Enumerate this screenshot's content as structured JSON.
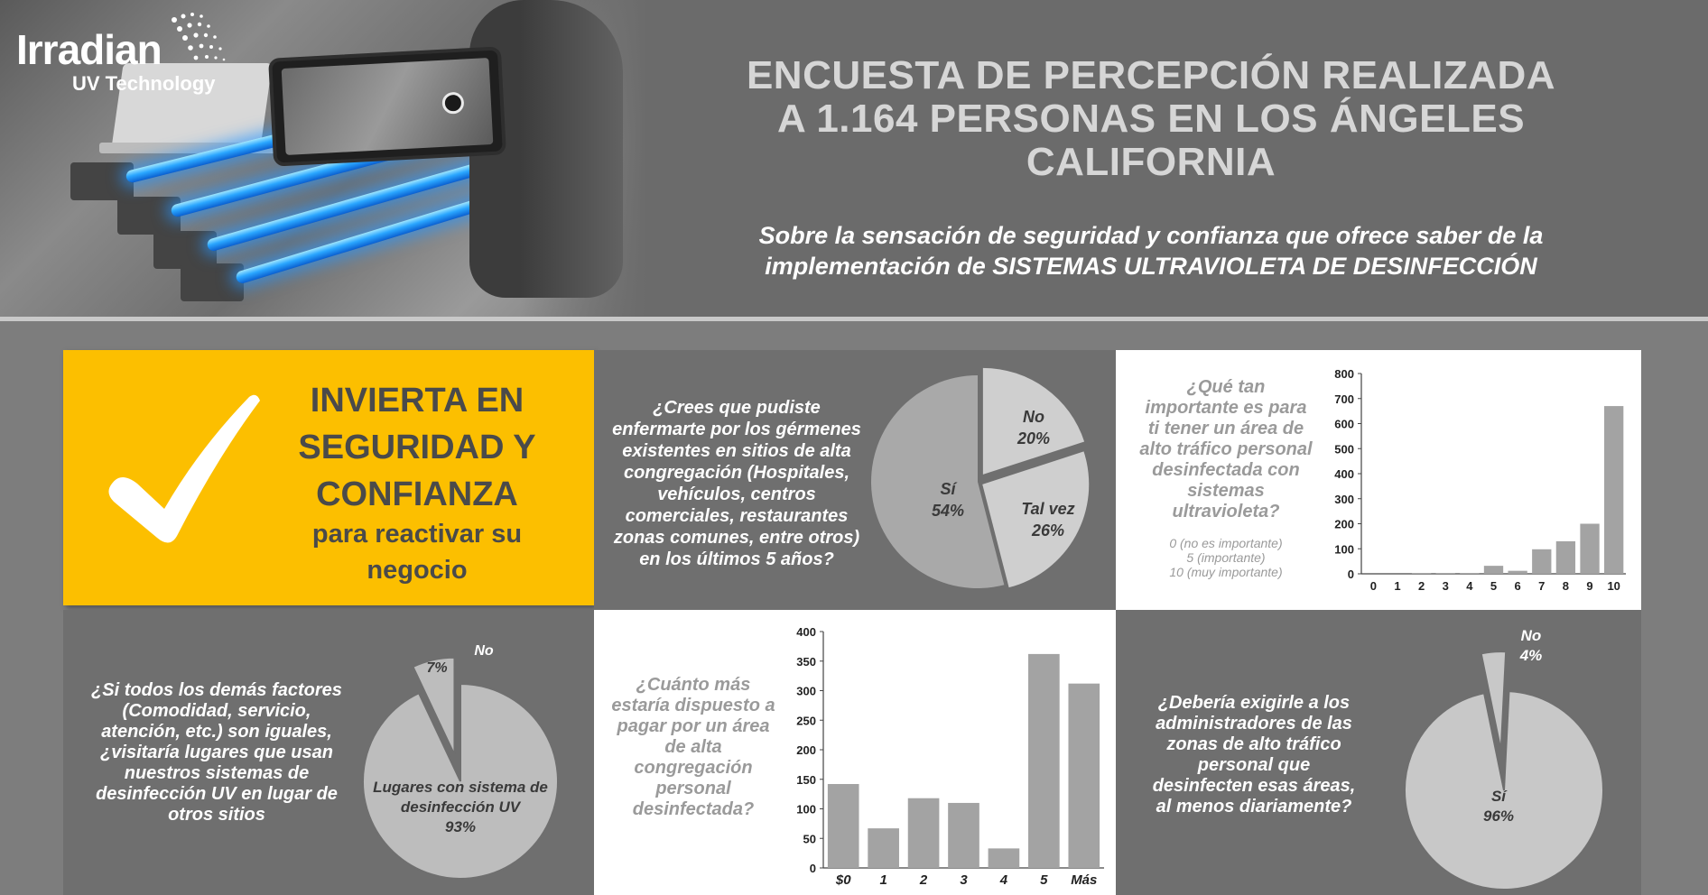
{
  "header": {
    "brand": "Irradian",
    "brand_sub": "UV Technology",
    "title_lines": [
      "ENCUESTA DE PERCEPCIÓN REALIZADA",
      "A 1.164 PERSONAS EN LOS ÁNGELES",
      "CALIFORNIA"
    ],
    "subtitle_line1": "Sobre la sensación de seguridad y confianza que ofrece saber de la",
    "subtitle_line2_prefix": "implementación de ",
    "subtitle_line2_emph": "SISTEMAS ULTRAVIOLETA DE DESINFECCIÓN"
  },
  "cta": {
    "icon": "check-mark-icon",
    "headline_lines": [
      "INVIERTA EN",
      "SEGURIDAD Y",
      "CONFIANZA"
    ],
    "sub_lines": [
      "para reactivar su",
      "negocio"
    ]
  },
  "q1": {
    "question_lines": [
      "¿Crees que pudiste",
      "enfermarte por los gérmenes",
      "existentes en sitios de alta",
      "congregación (Hospitales,",
      "vehículos, centros",
      "comerciales, restaurantes",
      "zonas comunes, entre otros)",
      "en los últimos 5 años?"
    ]
  },
  "q2": {
    "question_lines": [
      "¿Qué tan",
      "importante es para",
      "ti tener un área de",
      "alto tráfico personal",
      "desinfectada con",
      "sistemas",
      "ultravioleta?"
    ],
    "legend_lines": [
      "0 (no es importante)",
      "5 (importante)",
      "10 (muy importante)"
    ]
  },
  "q3": {
    "question_lines": [
      "¿Si todos los demás factores",
      "(Comodidad, servicio,",
      "atención, etc.) son iguales,",
      "¿visitaría lugares que usan",
      "nuestros sistemas de",
      "desinfección UV en lugar de",
      "otros sitios"
    ]
  },
  "q4": {
    "question_lines": [
      "¿Cuánto más",
      "estaría dispuesto a",
      "pagar por un área",
      "de alta",
      "congregación",
      "personal",
      "desinfectada?"
    ]
  },
  "q5": {
    "question_lines": [
      "¿Debería exigirle a los",
      "administradores de las",
      "zonas de alto tráfico",
      "personal que",
      "desinfecten esas áreas,",
      "al menos diariamente?"
    ]
  },
  "chart_data": [
    {
      "type": "pie",
      "categories": [
        "No",
        "Tal vez",
        "Sí"
      ],
      "values": [
        20,
        26,
        54
      ],
      "value_labels": [
        "20%",
        "26%",
        "54%"
      ],
      "colors": [
        "#cfcfcf",
        "#cfcfcf",
        "#a9a9a9"
      ]
    },
    {
      "type": "bar",
      "categories": [
        "0",
        "1",
        "2",
        "3",
        "4",
        "5",
        "6",
        "7",
        "8",
        "9",
        "10"
      ],
      "values": [
        0,
        0,
        3,
        3,
        3,
        32,
        12,
        98,
        130,
        200,
        670
      ],
      "ylim": [
        0,
        800
      ],
      "yticks": [
        "0",
        "100",
        "200",
        "300",
        "400",
        "500",
        "600",
        "700",
        "800"
      ],
      "grid": false
    },
    {
      "type": "pie",
      "categories": [
        "No",
        "Lugares con sistema de desinfección UV"
      ],
      "values": [
        7,
        93
      ],
      "value_labels": [
        "7%",
        "93%"
      ],
      "colors": [
        "#bdbdbd",
        "#bdbdbd"
      ]
    },
    {
      "type": "bar",
      "categories": [
        "$0",
        "1",
        "2",
        "3",
        "4",
        "5",
        "Más"
      ],
      "values": [
        142,
        67,
        118,
        110,
        33,
        362,
        312
      ],
      "ylim": [
        0,
        400
      ],
      "yticks": [
        "0",
        "50",
        "100",
        "150",
        "200",
        "250",
        "300",
        "350",
        "400"
      ],
      "grid": false
    },
    {
      "type": "pie",
      "categories": [
        "No",
        "Sí"
      ],
      "values": [
        4,
        96
      ],
      "value_labels": [
        "4%",
        "96%"
      ],
      "colors": [
        "#c8c8c8",
        "#c8c8c8"
      ]
    }
  ]
}
